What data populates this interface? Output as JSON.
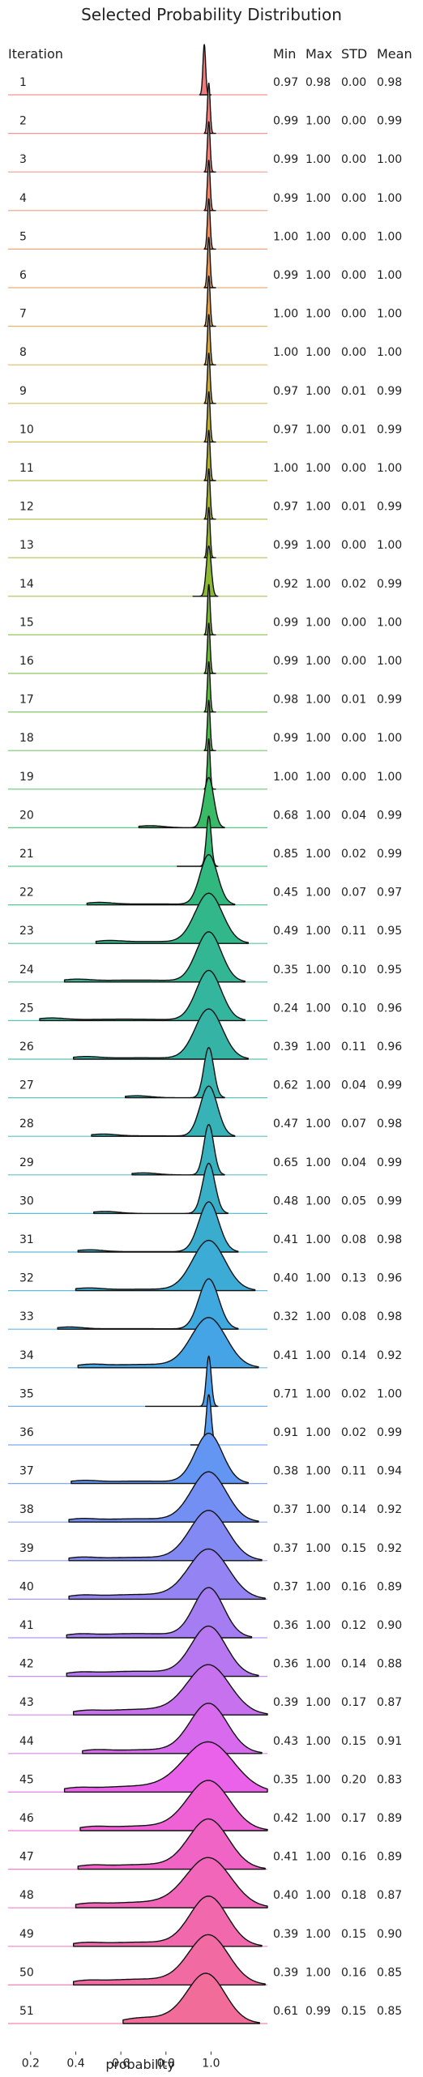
{
  "chart_data": {
    "type": "ridgeline",
    "title": "Selected Probability Distribution",
    "xlabel": "probability",
    "x_ticks": [
      "0.2",
      "0.4",
      "0.6",
      "0.8",
      "1.0"
    ],
    "x_tick_values": [
      0.2,
      0.4,
      0.6,
      0.8,
      1.0
    ],
    "x_range": [
      0.1,
      1.25
    ],
    "columns": [
      "Iteration",
      "Min",
      "Max",
      "STD",
      "Mean"
    ],
    "rows": [
      {
        "iteration": "1",
        "min": "0.97",
        "max": "0.98",
        "std": "0.00",
        "mean": "0.98",
        "color": "#f27c7c"
      },
      {
        "iteration": "2",
        "min": "0.99",
        "max": "1.00",
        "std": "0.00",
        "mean": "0.99",
        "color": "#f2807c"
      },
      {
        "iteration": "3",
        "min": "0.99",
        "max": "1.00",
        "std": "0.00",
        "mean": "1.00",
        "color": "#f2847a"
      },
      {
        "iteration": "4",
        "min": "0.99",
        "max": "1.00",
        "std": "0.00",
        "mean": "1.00",
        "color": "#f08a6a"
      },
      {
        "iteration": "5",
        "min": "1.00",
        "max": "1.00",
        "std": "0.00",
        "mean": "1.00",
        "color": "#ee9060"
      },
      {
        "iteration": "6",
        "min": "0.99",
        "max": "1.00",
        "std": "0.00",
        "mean": "1.00",
        "color": "#e99a55"
      },
      {
        "iteration": "7",
        "min": "1.00",
        "max": "1.00",
        "std": "0.00",
        "mean": "1.00",
        "color": "#e2a34a"
      },
      {
        "iteration": "8",
        "min": "1.00",
        "max": "1.00",
        "std": "0.00",
        "mean": "1.00",
        "color": "#d9aa40"
      },
      {
        "iteration": "9",
        "min": "0.97",
        "max": "1.00",
        "std": "0.01",
        "mean": "0.99",
        "color": "#cdae38"
      },
      {
        "iteration": "10",
        "min": "0.97",
        "max": "1.00",
        "std": "0.01",
        "mean": "0.99",
        "color": "#c1b232"
      },
      {
        "iteration": "11",
        "min": "1.00",
        "max": "1.00",
        "std": "0.00",
        "mean": "1.00",
        "color": "#b4b42f"
      },
      {
        "iteration": "12",
        "min": "0.97",
        "max": "1.00",
        "std": "0.01",
        "mean": "0.99",
        "color": "#a7b62e"
      },
      {
        "iteration": "13",
        "min": "0.99",
        "max": "1.00",
        "std": "0.00",
        "mean": "1.00",
        "color": "#9ab72f"
      },
      {
        "iteration": "14",
        "min": "0.92",
        "max": "1.00",
        "std": "0.02",
        "mean": "0.99",
        "color": "#8db832"
      },
      {
        "iteration": "15",
        "min": "0.99",
        "max": "1.00",
        "std": "0.00",
        "mean": "1.00",
        "color": "#80b936"
      },
      {
        "iteration": "16",
        "min": "0.99",
        "max": "1.00",
        "std": "0.00",
        "mean": "1.00",
        "color": "#72ba3c"
      },
      {
        "iteration": "17",
        "min": "0.98",
        "max": "1.00",
        "std": "0.01",
        "mean": "0.99",
        "color": "#63bb44"
      },
      {
        "iteration": "18",
        "min": "0.99",
        "max": "1.00",
        "std": "0.00",
        "mean": "1.00",
        "color": "#54bb4e"
      },
      {
        "iteration": "19",
        "min": "1.00",
        "max": "1.00",
        "std": "0.00",
        "mean": "1.00",
        "color": "#45bb59"
      },
      {
        "iteration": "20",
        "min": "0.68",
        "max": "1.00",
        "std": "0.04",
        "mean": "0.99",
        "color": "#38ba66"
      },
      {
        "iteration": "21",
        "min": "0.85",
        "max": "1.00",
        "std": "0.02",
        "mean": "0.99",
        "color": "#32b973"
      },
      {
        "iteration": "22",
        "min": "0.45",
        "max": "1.00",
        "std": "0.07",
        "mean": "0.97",
        "color": "#30b87f"
      },
      {
        "iteration": "23",
        "min": "0.49",
        "max": "1.00",
        "std": "0.11",
        "mean": "0.95",
        "color": "#31b78a"
      },
      {
        "iteration": "24",
        "min": "0.35",
        "max": "1.00",
        "std": "0.10",
        "mean": "0.95",
        "color": "#32b694"
      },
      {
        "iteration": "25",
        "min": "0.24",
        "max": "1.00",
        "std": "0.10",
        "mean": "0.96",
        "color": "#34b59d"
      },
      {
        "iteration": "26",
        "min": "0.39",
        "max": "1.00",
        "std": "0.11",
        "mean": "0.96",
        "color": "#35b4a6"
      },
      {
        "iteration": "27",
        "min": "0.62",
        "max": "1.00",
        "std": "0.04",
        "mean": "0.99",
        "color": "#36b3ae"
      },
      {
        "iteration": "28",
        "min": "0.47",
        "max": "1.00",
        "std": "0.07",
        "mean": "0.98",
        "color": "#37b2b6"
      },
      {
        "iteration": "29",
        "min": "0.65",
        "max": "1.00",
        "std": "0.04",
        "mean": "0.99",
        "color": "#38b1be"
      },
      {
        "iteration": "30",
        "min": "0.48",
        "max": "1.00",
        "std": "0.05",
        "mean": "0.99",
        "color": "#39afc6"
      },
      {
        "iteration": "31",
        "min": "0.41",
        "max": "1.00",
        "std": "0.08",
        "mean": "0.98",
        "color": "#3aadce"
      },
      {
        "iteration": "32",
        "min": "0.40",
        "max": "1.00",
        "std": "0.13",
        "mean": "0.96",
        "color": "#3cabd6"
      },
      {
        "iteration": "33",
        "min": "0.32",
        "max": "1.00",
        "std": "0.08",
        "mean": "0.98",
        "color": "#3fa8de"
      },
      {
        "iteration": "34",
        "min": "0.41",
        "max": "1.00",
        "std": "0.14",
        "mean": "0.92",
        "color": "#44a4e6"
      },
      {
        "iteration": "35",
        "min": "0.71",
        "max": "1.00",
        "std": "0.02",
        "mean": "1.00",
        "color": "#4ba0ec"
      },
      {
        "iteration": "36",
        "min": "0.91",
        "max": "1.00",
        "std": "0.02",
        "mean": "0.99",
        "color": "#559bf0"
      },
      {
        "iteration": "37",
        "min": "0.38",
        "max": "1.00",
        "std": "0.11",
        "mean": "0.94",
        "color": "#6395f2"
      },
      {
        "iteration": "38",
        "min": "0.37",
        "max": "1.00",
        "std": "0.14",
        "mean": "0.92",
        "color": "#738ff3"
      },
      {
        "iteration": "39",
        "min": "0.37",
        "max": "1.00",
        "std": "0.15",
        "mean": "0.92",
        "color": "#8389f3"
      },
      {
        "iteration": "40",
        "min": "0.37",
        "max": "1.00",
        "std": "0.16",
        "mean": "0.89",
        "color": "#9483f3"
      },
      {
        "iteration": "41",
        "min": "0.36",
        "max": "1.00",
        "std": "0.12",
        "mean": "0.90",
        "color": "#a57df2"
      },
      {
        "iteration": "42",
        "min": "0.36",
        "max": "1.00",
        "std": "0.14",
        "mean": "0.88",
        "color": "#b677f1"
      },
      {
        "iteration": "43",
        "min": "0.39",
        "max": "1.00",
        "std": "0.17",
        "mean": "0.87",
        "color": "#c771ef"
      },
      {
        "iteration": "44",
        "min": "0.43",
        "max": "1.00",
        "std": "0.15",
        "mean": "0.91",
        "color": "#d86bed"
      },
      {
        "iteration": "45",
        "min": "0.35",
        "max": "1.00",
        "std": "0.20",
        "mean": "0.83",
        "color": "#ea62ea"
      },
      {
        "iteration": "46",
        "min": "0.42",
        "max": "1.00",
        "std": "0.17",
        "mean": "0.89",
        "color": "#ee62d6"
      },
      {
        "iteration": "47",
        "min": "0.41",
        "max": "1.00",
        "std": "0.16",
        "mean": "0.89",
        "color": "#f064c6"
      },
      {
        "iteration": "48",
        "min": "0.40",
        "max": "1.00",
        "std": "0.18",
        "mean": "0.87",
        "color": "#f166b8"
      },
      {
        "iteration": "49",
        "min": "0.39",
        "max": "1.00",
        "std": "0.15",
        "mean": "0.90",
        "color": "#f268ac"
      },
      {
        "iteration": "50",
        "min": "0.39",
        "max": "1.00",
        "std": "0.16",
        "mean": "0.85",
        "color": "#f26aa2"
      },
      {
        "iteration": "51",
        "min": "0.61",
        "max": "0.99",
        "std": "0.15",
        "mean": "0.85",
        "color": "#f26c9a"
      }
    ]
  }
}
